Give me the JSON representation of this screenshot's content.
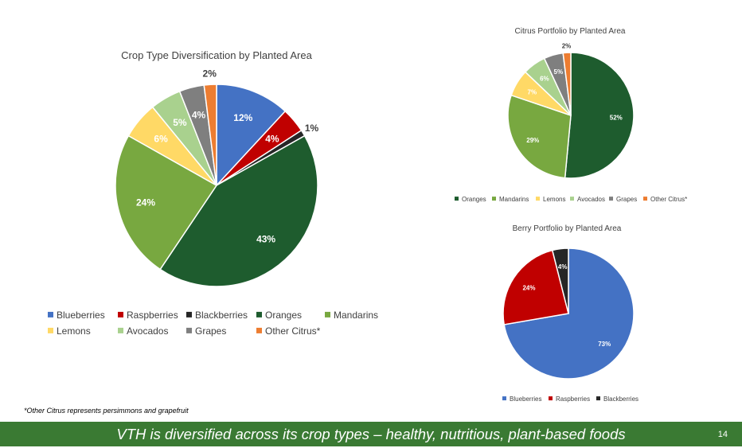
{
  "chart_data": [
    {
      "type": "pie",
      "title": "Crop Type Diversification by Planted Area",
      "categories": [
        "Blueberries",
        "Raspberries",
        "Blackberries",
        "Oranges",
        "Mandarins",
        "Lemons",
        "Avocados",
        "Grapes",
        "Other Citrus*"
      ],
      "values": [
        12,
        4,
        1,
        43,
        24,
        6,
        5,
        4,
        2
      ],
      "labels": [
        "12%",
        "4%",
        "1%",
        "43%",
        "24%",
        "6%",
        "5%",
        "4%",
        "2%"
      ],
      "colors": [
        "#4472c4",
        "#c00000",
        "#262626",
        "#1e5c2e",
        "#78a840",
        "#ffd966",
        "#a9d18e",
        "#7f7f7f",
        "#ed7d31"
      ],
      "legend_position": "bottom"
    },
    {
      "type": "pie",
      "title": "Citrus Portfolio by Planted Area",
      "categories": [
        "Oranges",
        "Mandarins",
        "Lemons",
        "Avocados",
        "Grapes",
        "Other Citrus*"
      ],
      "values": [
        52,
        29,
        7,
        6,
        5,
        2
      ],
      "labels": [
        "52%",
        "29%",
        "7%",
        "6%",
        "5%",
        "2%"
      ],
      "colors": [
        "#1e5c2e",
        "#78a840",
        "#ffd966",
        "#a9d18e",
        "#7f7f7f",
        "#ed7d31"
      ],
      "legend_position": "bottom"
    },
    {
      "type": "pie",
      "title": "Berry Portfolio by Planted Area",
      "categories": [
        "Blueberries",
        "Raspberries",
        "Blackberries"
      ],
      "values": [
        73,
        24,
        4
      ],
      "labels": [
        "73%",
        "24%",
        "4%"
      ],
      "colors": [
        "#4472c4",
        "#c00000",
        "#262626"
      ],
      "legend_position": "bottom"
    }
  ],
  "footnote": "*Other Citrus represents persimmons and grapefruit",
  "footer": {
    "text": "VTH is diversified across its crop types – healthy, nutritious, plant-based foods",
    "page_number": "14",
    "background_color": "#3a7a33"
  }
}
